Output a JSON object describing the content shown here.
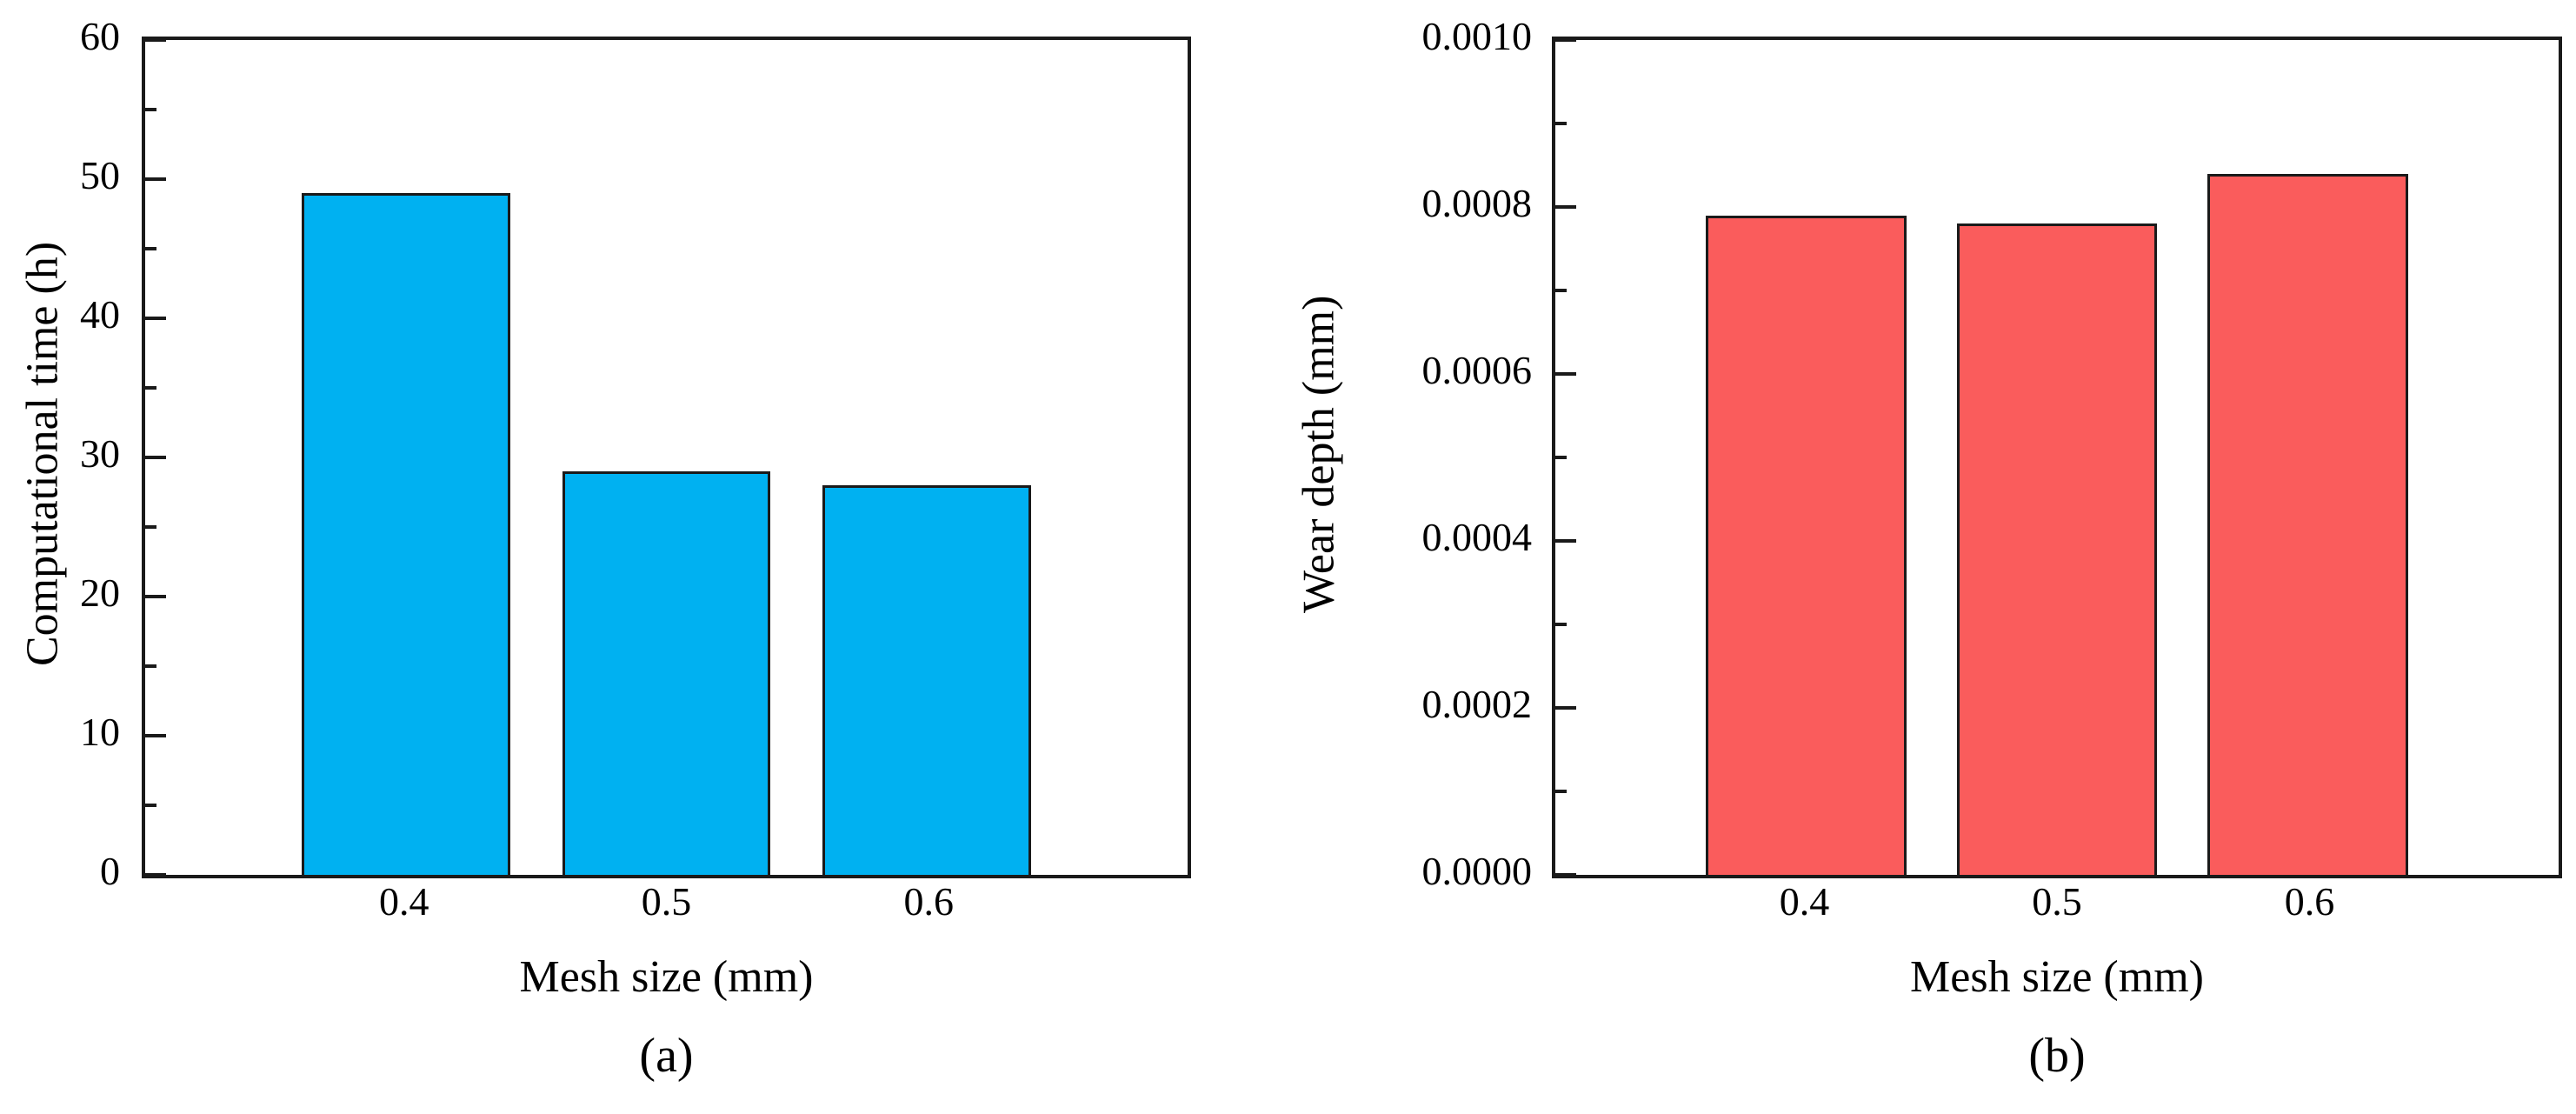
{
  "figure": {
    "background": "#ffffff",
    "axis_color": "#1a1a1a",
    "text_color": "#000000"
  },
  "chart_data": [
    {
      "type": "bar",
      "panel_caption": "(a)",
      "title": "",
      "categories": [
        "0.4",
        "0.5",
        "0.6"
      ],
      "values": [
        49,
        29,
        28
      ],
      "xlabel": "Mesh size (mm)",
      "ylabel": "Computational time (h)",
      "ylim": [
        0,
        60
      ],
      "yticks": [
        "0",
        "10",
        "20",
        "30",
        "40",
        "50",
        "60"
      ],
      "minor_ticks_between_major": 1,
      "grid": false,
      "legend": null,
      "bar_color": "#00b1f1",
      "bar_edge_color": "#1a1a1a",
      "bar_width_pct": 20
    },
    {
      "type": "bar",
      "panel_caption": "(b)",
      "title": "",
      "categories": [
        "0.4",
        "0.5",
        "0.6"
      ],
      "values": [
        0.00079,
        0.00078,
        0.00084
      ],
      "xlabel": "Mesh size (mm)",
      "ylabel": "Wear depth (mm)",
      "ylim": [
        0,
        0.001
      ],
      "yticks": [
        "0.0000",
        "0.0002",
        "0.0004",
        "0.0006",
        "0.0008",
        "0.0010"
      ],
      "minor_ticks_between_major": 1,
      "grid": false,
      "legend": null,
      "bar_color": "#fa5c5c",
      "bar_edge_color": "#1a1a1a",
      "bar_width_pct": 20
    }
  ]
}
